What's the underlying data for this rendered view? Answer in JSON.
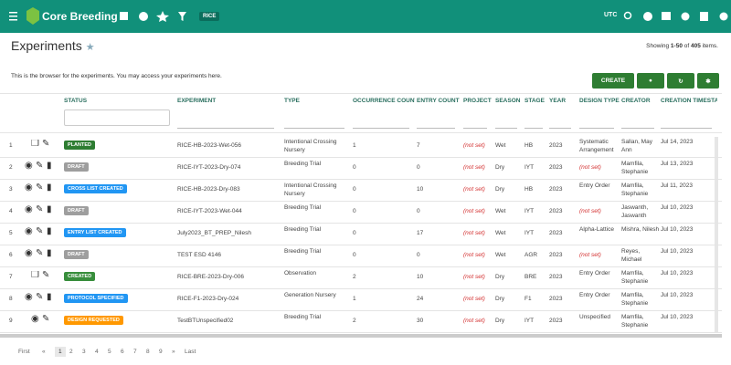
{
  "header": {
    "brand": "Core Breeding",
    "tag": "RICE",
    "timezone": "UTC"
  },
  "page": {
    "title": "Experiments",
    "showing": [
      "Showing ",
      "1-50",
      " of ",
      "405",
      " items."
    ],
    "description": "This is the browser for the experiments. You may access your experiments here.",
    "create": "CREATE"
  },
  "table": {
    "columns": [
      "STATUS",
      "EXPERIMENT",
      "TYPE",
      "OCCURRENCE COUNT",
      "ENTRY COUNT",
      "PROJECT",
      "SEASON",
      "STAGE",
      "YEAR",
      "DESIGN TYPE",
      "CREATOR",
      "CREATION TIMESTAMP"
    ],
    "rows": [
      [
        "1",
        {
          "label": "PLANTED",
          "color": "#2e7d32"
        },
        "RICE-HB-2023-Wet-056",
        "Intentional Crossing Nursery",
        "1",
        "7",
        "(not set)",
        "Wet",
        "HB",
        "2023",
        "Systematic Arrangement",
        "Sallan, May Ann",
        "Jul 14, 2023"
      ],
      [
        "2",
        {
          "label": "DRAFT",
          "color": "#9e9e9e"
        },
        "RICE-IYT-2023-Dry-074",
        "Breeding Trial",
        "0",
        "0",
        "(not set)",
        "Dry",
        "IYT",
        "2023",
        "(not set)",
        "Mamfila, Stephanie",
        "Jul 13, 2023"
      ],
      [
        "3",
        {
          "label": "CROSS LIST CREATED",
          "color": "#2196f3"
        },
        "RICE-HB-2023-Dry-083",
        "Intentional Crossing Nursery",
        "0",
        "10",
        "(not set)",
        "Dry",
        "HB",
        "2023",
        "Entry Order",
        "Mamfila, Stephanie",
        "Jul 11, 2023"
      ],
      [
        "4",
        {
          "label": "DRAFT",
          "color": "#9e9e9e"
        },
        "RICE-IYT-2023-Wet-044",
        "Breeding Trial",
        "0",
        "0",
        "(not set)",
        "Wet",
        "IYT",
        "2023",
        "(not set)",
        "Jaswanth, Jaswanth",
        "Jul 10, 2023"
      ],
      [
        "5",
        {
          "label": "ENTRY LIST CREATED",
          "color": "#2196f3"
        },
        "July2023_BT_PREP_Nilesh",
        "Breeding Trial",
        "0",
        "17",
        "(not set)",
        "Wet",
        "IYT",
        "2023",
        "Alpha-Lattice",
        "Mishra, Nilesh",
        "Jul 10, 2023"
      ],
      [
        "6",
        {
          "label": "DRAFT",
          "color": "#9e9e9e"
        },
        "TEST ESD 4146",
        "Breeding Trial",
        "0",
        "0",
        "(not set)",
        "Wet",
        "AGR",
        "2023",
        "(not set)",
        "Reyes, Michael",
        "Jul 10, 2023"
      ],
      [
        "7",
        {
          "label": "CREATED",
          "color": "#388e3c"
        },
        "RICE-BRE-2023-Dry-006",
        "Observation",
        "2",
        "10",
        "(not set)",
        "Dry",
        "BRE",
        "2023",
        "Entry Order",
        "Mamfila, Stephanie",
        "Jul 10, 2023"
      ],
      [
        "8",
        {
          "label": "PROTOCOL SPECIFIED",
          "color": "#2196f3"
        },
        "RICE-F1-2023-Dry-024",
        "Generation Nursery",
        "1",
        "24",
        "(not set)",
        "Dry",
        "F1",
        "2023",
        "Entry Order",
        "Mamfila, Stephanie",
        "Jul 10, 2023"
      ],
      [
        "9",
        {
          "label": "DESIGN REQUESTED",
          "color": "#ff9800"
        },
        "TestBTUnspecified02",
        "Breeding Trial",
        "2",
        "30",
        "(not set)",
        "Dry",
        "IYT",
        "2023",
        "Unspecified",
        "Mamfila, Stephanie",
        "Jul 10, 2023"
      ]
    ]
  },
  "pagination": [
    "First",
    "«",
    "1",
    "2",
    "3",
    "4",
    "5",
    "6",
    "7",
    "8",
    "9",
    "»",
    "Last"
  ]
}
